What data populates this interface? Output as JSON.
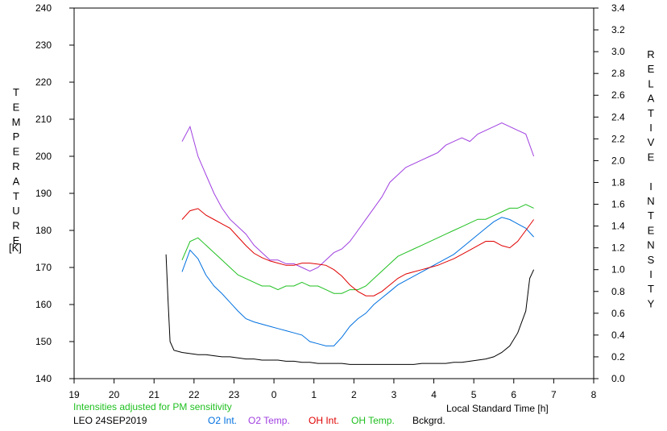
{
  "chart_data": {
    "type": "line",
    "xlabel": "Local Standard Time [h]",
    "ylabel_left": "TEMPERATURE",
    "ylabel_left_unit": "[K]",
    "ylabel_right": "RELATIVE INTENSITY",
    "x_ticks": [
      "19",
      "20",
      "21",
      "22",
      "23",
      "0",
      "1",
      "2",
      "3",
      "4",
      "5",
      "6",
      "7",
      "8"
    ],
    "xlim": [
      19,
      32
    ],
    "ylim_left": [
      140,
      240
    ],
    "yticks_left": [
      "140",
      "150",
      "160",
      "170",
      "180",
      "190",
      "200",
      "210",
      "220",
      "230",
      "240"
    ],
    "ylim_right": [
      0.0,
      3.4
    ],
    "yticks_right": [
      "0.0",
      "0.2",
      "0.4",
      "0.6",
      "0.8",
      "1.0",
      "1.2",
      "1.4",
      "1.6",
      "1.8",
      "2.0",
      "2.2",
      "2.4",
      "2.6",
      "2.8",
      "3.0",
      "3.2",
      "3.4"
    ],
    "note": "Intensities adjusted for PM sensitivity",
    "station": "LEO 24SEP2019",
    "legend": [
      "O2 Int.",
      "O2 Temp.",
      "OH Int.",
      "OH Temp.",
      "Bckgrd."
    ],
    "colors": {
      "O2 Int.": "#0070e0",
      "O2 Temp.": "#a040e0",
      "OH Int.": "#e00000",
      "OH Temp.": "#20c020",
      "Bckgrd.": "#000000",
      "note": "#20c020"
    },
    "series": [
      {
        "name": "O2 Temp.",
        "axis": "left",
        "x": [
          21.7,
          21.9,
          22.1,
          22.3,
          22.5,
          22.7,
          22.9,
          23.1,
          23.3,
          23.5,
          23.7,
          23.9,
          24.1,
          24.3,
          24.5,
          24.7,
          24.9,
          25.1,
          25.3,
          25.5,
          25.7,
          25.9,
          26.1,
          26.3,
          26.5,
          26.7,
          26.9,
          27.1,
          27.3,
          27.5,
          27.7,
          27.9,
          28.1,
          28.3,
          28.5,
          28.7,
          28.9,
          29.1,
          29.3,
          29.5,
          29.7,
          29.9,
          30.1,
          30.3,
          30.5
        ],
        "y": [
          204,
          208,
          200,
          195,
          190,
          186,
          183,
          181,
          179,
          176,
          174,
          172,
          172,
          171,
          171,
          170,
          169,
          170,
          172,
          174,
          175,
          177,
          180,
          183,
          186,
          189,
          193,
          195,
          197,
          198,
          199,
          200,
          201,
          203,
          204,
          205,
          204,
          206,
          207,
          208,
          209,
          208,
          207,
          206,
          200
        ]
      },
      {
        "name": "OH Temp.",
        "axis": "left",
        "x": [
          21.7,
          21.9,
          22.1,
          22.3,
          22.5,
          22.7,
          22.9,
          23.1,
          23.3,
          23.5,
          23.7,
          23.9,
          24.1,
          24.3,
          24.5,
          24.7,
          24.9,
          25.1,
          25.3,
          25.5,
          25.7,
          25.9,
          26.1,
          26.3,
          26.5,
          26.7,
          26.9,
          27.1,
          27.3,
          27.5,
          27.7,
          27.9,
          28.1,
          28.3,
          28.5,
          28.7,
          28.9,
          29.1,
          29.3,
          29.5,
          29.7,
          29.9,
          30.1,
          30.3,
          30.5
        ],
        "y": [
          172,
          177,
          178,
          176,
          174,
          172,
          170,
          168,
          167,
          166,
          165,
          165,
          164,
          165,
          165,
          166,
          165,
          165,
          164,
          163,
          163,
          164,
          164,
          165,
          167,
          169,
          171,
          173,
          174,
          175,
          176,
          177,
          178,
          179,
          180,
          181,
          182,
          183,
          183,
          184,
          185,
          186,
          186,
          187,
          186
        ]
      },
      {
        "name": "O2 Int.",
        "axis": "right",
        "x": [
          21.7,
          21.9,
          22.1,
          22.3,
          22.5,
          22.7,
          22.9,
          23.1,
          23.3,
          23.5,
          23.7,
          23.9,
          24.1,
          24.3,
          24.5,
          24.7,
          24.9,
          25.1,
          25.3,
          25.5,
          25.7,
          25.9,
          26.1,
          26.3,
          26.5,
          26.7,
          26.9,
          27.1,
          27.3,
          27.5,
          27.7,
          27.9,
          28.1,
          28.3,
          28.5,
          28.7,
          28.9,
          29.1,
          29.3,
          29.5,
          29.7,
          29.9,
          30.1,
          30.3,
          30.5
        ],
        "y": [
          0.98,
          1.18,
          1.1,
          0.95,
          0.85,
          0.78,
          0.7,
          0.62,
          0.55,
          0.52,
          0.5,
          0.48,
          0.46,
          0.44,
          0.42,
          0.4,
          0.34,
          0.32,
          0.3,
          0.3,
          0.38,
          0.48,
          0.55,
          0.6,
          0.68,
          0.74,
          0.8,
          0.86,
          0.9,
          0.94,
          0.98,
          1.02,
          1.06,
          1.1,
          1.14,
          1.2,
          1.26,
          1.32,
          1.38,
          1.44,
          1.48,
          1.46,
          1.42,
          1.38,
          1.3
        ]
      },
      {
        "name": "OH Int.",
        "axis": "right",
        "x": [
          21.7,
          21.9,
          22.1,
          22.3,
          22.5,
          22.7,
          22.9,
          23.1,
          23.3,
          23.5,
          23.7,
          23.9,
          24.1,
          24.3,
          24.5,
          24.7,
          24.9,
          25.1,
          25.3,
          25.5,
          25.7,
          25.9,
          26.1,
          26.3,
          26.5,
          26.7,
          26.9,
          27.1,
          27.3,
          27.5,
          27.7,
          27.9,
          28.1,
          28.3,
          28.5,
          28.7,
          28.9,
          29.1,
          29.3,
          29.5,
          29.7,
          29.9,
          30.1,
          30.3,
          30.5
        ],
        "y": [
          1.46,
          1.54,
          1.56,
          1.5,
          1.46,
          1.42,
          1.38,
          1.3,
          1.22,
          1.15,
          1.11,
          1.08,
          1.06,
          1.04,
          1.04,
          1.06,
          1.06,
          1.05,
          1.04,
          1.0,
          0.94,
          0.86,
          0.8,
          0.76,
          0.76,
          0.8,
          0.86,
          0.92,
          0.96,
          0.98,
          1.0,
          1.02,
          1.04,
          1.07,
          1.1,
          1.14,
          1.18,
          1.22,
          1.26,
          1.26,
          1.22,
          1.2,
          1.26,
          1.36,
          1.46
        ]
      },
      {
        "name": "Bckgrd.",
        "axis": "right",
        "x": [
          21.3,
          21.35,
          21.4,
          21.5,
          21.7,
          21.9,
          22.1,
          22.3,
          22.5,
          22.7,
          22.9,
          23.1,
          23.3,
          23.5,
          23.7,
          23.9,
          24.1,
          24.3,
          24.5,
          24.7,
          24.9,
          25.1,
          25.3,
          25.5,
          25.7,
          25.9,
          26.1,
          26.3,
          26.5,
          26.7,
          26.9,
          27.1,
          27.3,
          27.5,
          27.7,
          27.9,
          28.1,
          28.3,
          28.5,
          28.7,
          28.9,
          29.1,
          29.3,
          29.5,
          29.7,
          29.9,
          30.1,
          30.3,
          30.4,
          30.5
        ],
        "y": [
          1.14,
          0.72,
          0.34,
          0.26,
          0.24,
          0.23,
          0.22,
          0.22,
          0.21,
          0.2,
          0.2,
          0.19,
          0.18,
          0.18,
          0.17,
          0.17,
          0.17,
          0.16,
          0.16,
          0.15,
          0.15,
          0.14,
          0.14,
          0.14,
          0.14,
          0.13,
          0.13,
          0.13,
          0.13,
          0.13,
          0.13,
          0.13,
          0.13,
          0.13,
          0.14,
          0.14,
          0.14,
          0.14,
          0.15,
          0.15,
          0.16,
          0.17,
          0.18,
          0.2,
          0.24,
          0.3,
          0.42,
          0.62,
          0.92,
          1.0
        ]
      }
    ]
  }
}
